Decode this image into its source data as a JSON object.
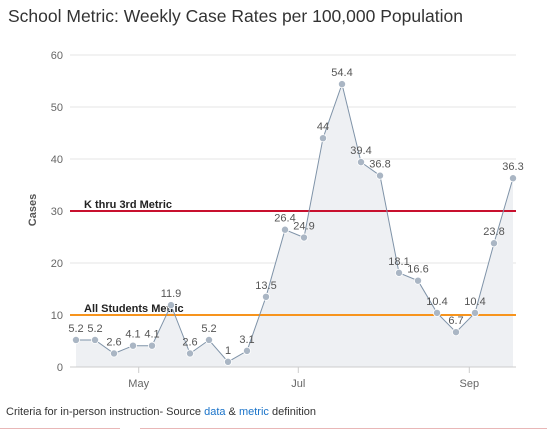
{
  "title": "School Metric: Weekly Case Rates per 100,000 Population",
  "footer": {
    "prefix": "Criteria for in-person instruction- Source ",
    "link_data": "data",
    "mid": " & ",
    "link_metric": "metric",
    "suffix": " definition"
  },
  "colors": {
    "line": "#7f93a8",
    "marker": "#aab6c4",
    "area": "#eef0f3",
    "k3_line": "#c8102e",
    "all_line": "#f7941d",
    "grid": "#e6e6e6"
  },
  "chart_data": {
    "type": "area",
    "title": "School Metric: Weekly Case Rates per 100,000 Population",
    "xlabel": "",
    "ylabel": "Cases",
    "ylim": [
      0,
      60
    ],
    "yticks": [
      0,
      10,
      20,
      30,
      40,
      50,
      60
    ],
    "xticks": [
      "May",
      "Jul",
      "Sep"
    ],
    "grid": "y-major",
    "series": [
      {
        "values": [
          5.2,
          5.2,
          2.6,
          4.1,
          4.1,
          11.9,
          2.6,
          5.2,
          1,
          3.1,
          13.5,
          26.4,
          24.9,
          44,
          54.4,
          39.4,
          36.8,
          18.1,
          16.6,
          10.4,
          6.7,
          10.4,
          23.8,
          36.3
        ],
        "labels": [
          "5.2",
          "5.2",
          "2.6",
          "4.1",
          "4.1",
          "11.9",
          "2.6",
          "5.2",
          "1",
          "3.1",
          "13.5",
          "26.4",
          "24.9",
          "44",
          "54.4",
          "39.4",
          "36.8",
          "18.1",
          "16.6",
          "10.4",
          "6.7",
          "10.4",
          "23.8",
          "36.3"
        ]
      }
    ],
    "thresholds": [
      {
        "name": "K thru 3rd Metric",
        "value": 30
      },
      {
        "name": "All Students Metric",
        "value": 10
      }
    ]
  }
}
